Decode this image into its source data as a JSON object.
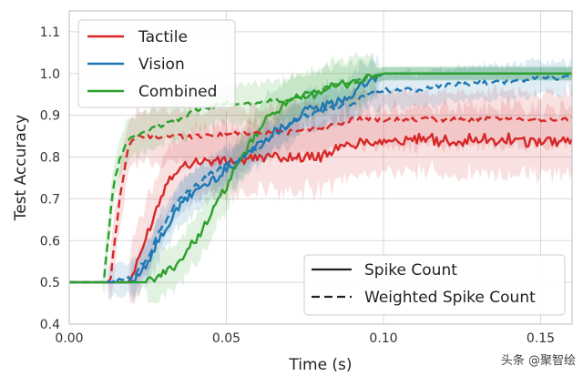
{
  "chart_data": {
    "type": "line",
    "title": "",
    "xlabel": "Time (s)",
    "ylabel": "Test Accuracy",
    "xlim": [
      0.0,
      0.16
    ],
    "ylim": [
      0.4,
      1.15
    ],
    "xticks": [
      0.0,
      0.05,
      0.1,
      0.15
    ],
    "xtick_labels": [
      "0.00",
      "0.05",
      "0.10",
      "0.15"
    ],
    "yticks": [
      0.4,
      0.5,
      0.6,
      0.7,
      0.8,
      0.9,
      1.0,
      1.1
    ],
    "ytick_labels": [
      "0.4",
      "0.5",
      "0.6",
      "0.7",
      "0.8",
      "0.9",
      "1.0",
      "1.1"
    ],
    "grid": true,
    "legend_color": {
      "placement": "top-left",
      "entries": [
        {
          "label": "Tactile",
          "color": "#d62728"
        },
        {
          "label": "Vision",
          "color": "#1f77b4"
        },
        {
          "label": "Combined",
          "color": "#2ca02c"
        }
      ]
    },
    "legend_style": {
      "placement": "bottom-right",
      "entries": [
        {
          "label": "Spike Count",
          "style": "solid"
        },
        {
          "label": "Weighted Spike Count",
          "style": "dashed"
        }
      ]
    },
    "series": [
      {
        "name": "Tactile - Spike Count",
        "color": "#d62728",
        "style": "solid",
        "x": [
          0.0,
          0.019,
          0.022,
          0.025,
          0.028,
          0.031,
          0.034,
          0.037,
          0.04,
          0.044,
          0.048,
          0.052,
          0.056,
          0.06,
          0.07,
          0.08,
          0.085,
          0.09,
          0.1,
          0.11,
          0.12,
          0.13,
          0.14,
          0.15,
          0.16
        ],
        "y": [
          0.5,
          0.5,
          0.55,
          0.62,
          0.68,
          0.74,
          0.77,
          0.78,
          0.79,
          0.79,
          0.79,
          0.79,
          0.79,
          0.8,
          0.8,
          0.8,
          0.82,
          0.83,
          0.84,
          0.84,
          0.84,
          0.84,
          0.84,
          0.84,
          0.84
        ],
        "band": 0.1
      },
      {
        "name": "Vision - Spike Count",
        "color": "#1f77b4",
        "style": "solid",
        "x": [
          0.0,
          0.02,
          0.025,
          0.03,
          0.035,
          0.04,
          0.045,
          0.05,
          0.055,
          0.06,
          0.065,
          0.07,
          0.075,
          0.08,
          0.085,
          0.09,
          0.095,
          0.1,
          0.11,
          0.12,
          0.13,
          0.14,
          0.15,
          0.16
        ],
        "y": [
          0.5,
          0.5,
          0.55,
          0.62,
          0.68,
          0.72,
          0.74,
          0.77,
          0.8,
          0.83,
          0.86,
          0.88,
          0.91,
          0.92,
          0.93,
          0.95,
          0.98,
          1.0,
          1.0,
          1.0,
          1.0,
          1.0,
          1.0,
          1.0
        ],
        "band": 0.06
      },
      {
        "name": "Combined - Spike Count",
        "color": "#2ca02c",
        "style": "solid",
        "x": [
          0.0,
          0.025,
          0.03,
          0.035,
          0.04,
          0.045,
          0.05,
          0.055,
          0.06,
          0.065,
          0.07,
          0.075,
          0.08,
          0.085,
          0.09,
          0.095,
          0.1,
          0.11,
          0.12,
          0.13,
          0.14,
          0.15,
          0.16
        ],
        "y": [
          0.5,
          0.5,
          0.52,
          0.55,
          0.6,
          0.66,
          0.73,
          0.8,
          0.86,
          0.91,
          0.93,
          0.94,
          0.96,
          0.97,
          0.98,
          0.99,
          1.0,
          1.0,
          1.0,
          1.0,
          1.0,
          1.0,
          1.0
        ],
        "band": 0.07
      },
      {
        "name": "Tactile - Weighted Spike Count",
        "color": "#d62728",
        "style": "dashed",
        "x": [
          0.0,
          0.013,
          0.016,
          0.019,
          0.022,
          0.025,
          0.04,
          0.06,
          0.07,
          0.08,
          0.085,
          0.09,
          0.1,
          0.11,
          0.12,
          0.13,
          0.14,
          0.15,
          0.16
        ],
        "y": [
          0.5,
          0.5,
          0.7,
          0.83,
          0.85,
          0.85,
          0.85,
          0.86,
          0.86,
          0.87,
          0.88,
          0.89,
          0.89,
          0.89,
          0.89,
          0.89,
          0.89,
          0.89,
          0.89
        ],
        "band": 0.08
      },
      {
        "name": "Vision - Weighted Spike Count",
        "color": "#1f77b4",
        "style": "dashed",
        "x": [
          0.0,
          0.012,
          0.015,
          0.02,
          0.025,
          0.03,
          0.035,
          0.04,
          0.045,
          0.05,
          0.055,
          0.06,
          0.065,
          0.07,
          0.075,
          0.08,
          0.085,
          0.09,
          0.095,
          0.1,
          0.11,
          0.12,
          0.13,
          0.14,
          0.15,
          0.16
        ],
        "y": [
          0.5,
          0.5,
          0.51,
          0.51,
          0.56,
          0.64,
          0.7,
          0.73,
          0.76,
          0.78,
          0.8,
          0.82,
          0.85,
          0.88,
          0.9,
          0.91,
          0.92,
          0.93,
          0.95,
          0.96,
          0.96,
          0.97,
          0.98,
          0.98,
          0.99,
          0.99
        ],
        "band": 0.05
      },
      {
        "name": "Combined - Weighted Spike Count",
        "color": "#2ca02c",
        "style": "dashed",
        "x": [
          0.0,
          0.011,
          0.014,
          0.017,
          0.02,
          0.025,
          0.03,
          0.035,
          0.04,
          0.045,
          0.05,
          0.06,
          0.07,
          0.075,
          0.08,
          0.085,
          0.09,
          0.095,
          0.1,
          0.11,
          0.12,
          0.13,
          0.14,
          0.15,
          0.16
        ],
        "y": [
          0.5,
          0.5,
          0.73,
          0.82,
          0.85,
          0.86,
          0.88,
          0.89,
          0.91,
          0.92,
          0.93,
          0.93,
          0.94,
          0.95,
          0.96,
          0.97,
          0.98,
          0.99,
          1.0,
          1.0,
          1.0,
          1.0,
          1.0,
          1.0,
          1.0
        ],
        "band": 0.06
      }
    ]
  },
  "watermark": {
    "text": "头条 @聚智绘"
  }
}
